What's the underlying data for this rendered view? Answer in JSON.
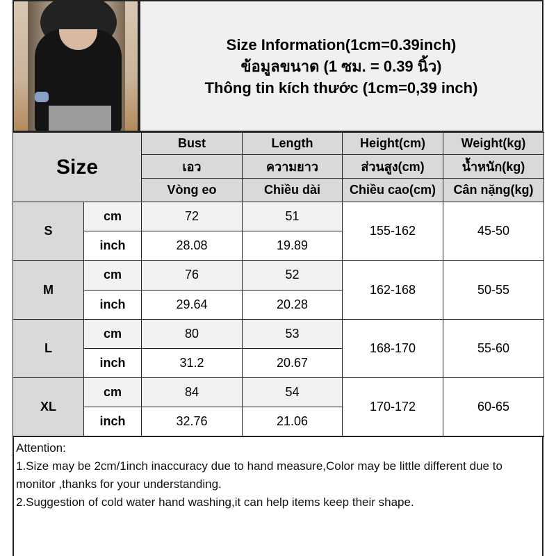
{
  "title": {
    "line1": "Size Information(1cm=0.39inch)",
    "line2": "ข้อมูลขนาด (1 ซม. = 0.39 นิ้ว)",
    "line3": "Thông tin kích thước (1cm=0,39 inch)"
  },
  "photo": {
    "alt": "product-photo-black-long-sleeve-top"
  },
  "table": {
    "size_header": "Size",
    "columns": [
      {
        "en": "Bust",
        "th": "เอว",
        "vi": "Vòng eo"
      },
      {
        "en": "Length",
        "th": "ความยาว",
        "vi": "Chiều dài"
      },
      {
        "en": "Height(cm)",
        "th": "ส่วนสูง(cm)",
        "vi": "Chiều cao(cm)"
      },
      {
        "en": "Weight(kg)",
        "th": "น้ำหนัก(kg)",
        "vi": "Cân nặng(kg)"
      }
    ],
    "unit_cm": "cm",
    "unit_inch": "inch",
    "rows": [
      {
        "size": "S",
        "bust_cm": "72",
        "length_cm": "51",
        "bust_inch": "28.08",
        "length_inch": "19.89",
        "height": "155-162",
        "weight": "45-50"
      },
      {
        "size": "M",
        "bust_cm": "76",
        "length_cm": "52",
        "bust_inch": "29.64",
        "length_inch": "20.28",
        "height": "162-168",
        "weight": "50-55"
      },
      {
        "size": "L",
        "bust_cm": "80",
        "length_cm": "53",
        "bust_inch": "31.2",
        "length_inch": "20.67",
        "height": "168-170",
        "weight": "55-60"
      },
      {
        "size": "XL",
        "bust_cm": "84",
        "length_cm": "54",
        "bust_inch": "32.76",
        "length_inch": "21.06",
        "height": "170-172",
        "weight": "60-65"
      }
    ]
  },
  "attention": {
    "heading": "Attention:",
    "note1": "1.Size may be 2cm/1inch inaccuracy due to hand measure,Color may be little different due to monitor ,thanks for your understanding.",
    "note2": "2.Suggestion of cold water hand washing,it can help items keep their shape."
  }
}
